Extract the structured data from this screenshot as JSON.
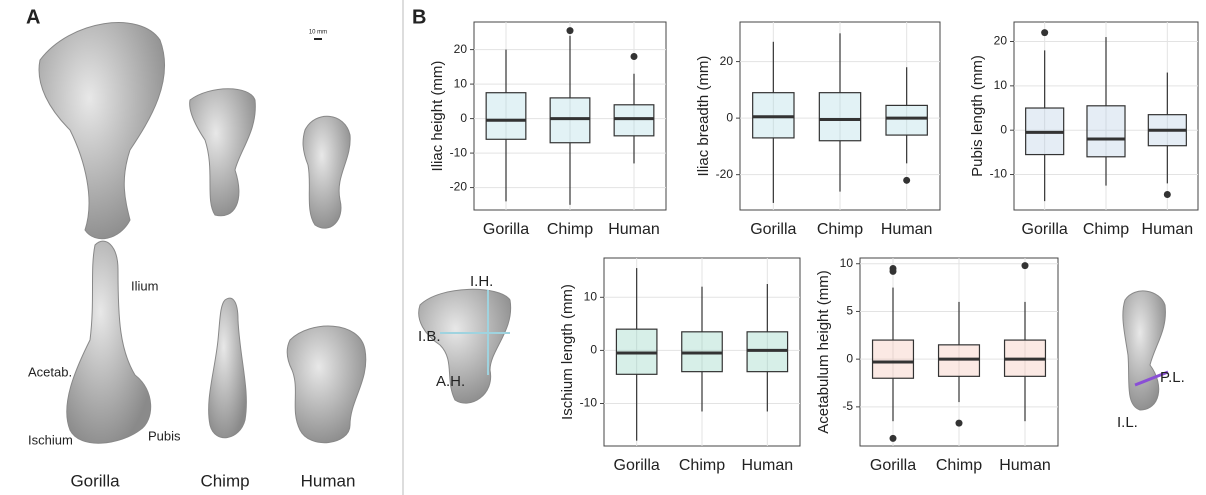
{
  "panel_labels": {
    "a": "A",
    "b": "B"
  },
  "panel_a": {
    "species": [
      "Gorilla",
      "Chimp",
      "Human"
    ],
    "scale_bar": "10 mm",
    "parts": {
      "ilium": "Ilium",
      "acetabulum": "Acetab.",
      "ischium": "Ischium",
      "pubis": "Pubis"
    }
  },
  "measures": {
    "iliac_height": "I.H.",
    "iliac_breadth": "I.B.",
    "acetabulum_height": "A.H.",
    "pubis_length": "P.L.",
    "ischium_length": "I.L."
  },
  "chart_data": [
    {
      "type": "box",
      "ylabel": "Iliac height (mm)",
      "categories": [
        "Gorilla",
        "Chimp",
        "Human"
      ],
      "color": "#9fd3df",
      "ylim": [
        -26.5,
        28
      ],
      "yticks": [
        -20,
        -10,
        0,
        10,
        20
      ],
      "grid": true,
      "boxes": [
        {
          "min": -24,
          "q1": -6,
          "median": -0.5,
          "q3": 7.5,
          "max": 20,
          "outliers": []
        },
        {
          "min": -25,
          "q1": -7,
          "median": 0,
          "q3": 6,
          "max": 24,
          "outliers": [
            25.5
          ]
        },
        {
          "min": -13,
          "q1": -5,
          "median": 0,
          "q3": 4,
          "max": 13,
          "outliers": [
            18
          ]
        }
      ]
    },
    {
      "type": "box",
      "ylabel": "Iliac breadth (mm)",
      "categories": [
        "Gorilla",
        "Chimp",
        "Human"
      ],
      "color": "#9fd3df",
      "ylim": [
        -32.5,
        34
      ],
      "yticks": [
        -20,
        0,
        20
      ],
      "grid": true,
      "boxes": [
        {
          "min": -30,
          "q1": -7,
          "median": 0.5,
          "q3": 9,
          "max": 27,
          "outliers": []
        },
        {
          "min": -26,
          "q1": -8,
          "median": -0.5,
          "q3": 9,
          "max": 30,
          "outliers": []
        },
        {
          "min": -16,
          "q1": -6,
          "median": 0,
          "q3": 4.5,
          "max": 18,
          "outliers": [
            -22
          ]
        }
      ]
    },
    {
      "type": "box",
      "ylabel": "Pubis length (mm)",
      "categories": [
        "Gorilla",
        "Chimp",
        "Human"
      ],
      "color": "#a9c3de",
      "ylim": [
        -18,
        24.4
      ],
      "yticks": [
        -10,
        0,
        10,
        20
      ],
      "grid": true,
      "boxes": [
        {
          "min": -16,
          "q1": -5.5,
          "median": -0.5,
          "q3": 5,
          "max": 18,
          "outliers": [
            22
          ]
        },
        {
          "min": -12.5,
          "q1": -6,
          "median": -2,
          "q3": 5.5,
          "max": 21,
          "outliers": []
        },
        {
          "min": -12,
          "q1": -3.5,
          "median": 0,
          "q3": 3.5,
          "max": 13,
          "outliers": [
            -14.5
          ]
        }
      ]
    },
    {
      "type": "box",
      "ylabel": "Ischium length (mm)",
      "categories": [
        "Gorilla",
        "Chimp",
        "Human"
      ],
      "color": "#7ccbb4",
      "ylim": [
        -18,
        17.4
      ],
      "yticks": [
        -10,
        0,
        10
      ],
      "grid": true,
      "boxes": [
        {
          "min": -17,
          "q1": -4.5,
          "median": -0.5,
          "q3": 4,
          "max": 15.5,
          "outliers": []
        },
        {
          "min": -11.5,
          "q1": -4,
          "median": -0.5,
          "q3": 3.5,
          "max": 12,
          "outliers": []
        },
        {
          "min": -11.5,
          "q1": -4,
          "median": 0,
          "q3": 3.5,
          "max": 12.5,
          "outliers": []
        }
      ]
    },
    {
      "type": "box",
      "ylabel": "Acetabulum height (mm)",
      "categories": [
        "Gorilla",
        "Chimp",
        "Human"
      ],
      "color": "#f2b7a4",
      "ylim": [
        -9.1,
        10.6
      ],
      "yticks": [
        -5,
        0,
        5,
        10
      ],
      "grid": true,
      "boxes": [
        {
          "min": -6.5,
          "q1": -2,
          "median": -0.3,
          "q3": 2,
          "max": 7.5,
          "outliers": [
            9.5,
            9.2,
            -8.3
          ]
        },
        {
          "min": -4.5,
          "q1": -1.8,
          "median": 0,
          "q3": 1.5,
          "max": 6,
          "outliers": [
            -6.7
          ]
        },
        {
          "min": -6.5,
          "q1": -1.8,
          "median": 0,
          "q3": 2,
          "max": 6,
          "outliers": [
            9.8
          ]
        }
      ]
    }
  ]
}
